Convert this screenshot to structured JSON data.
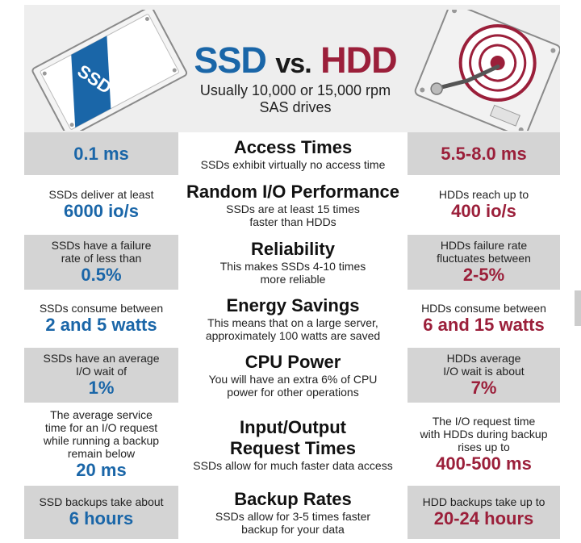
{
  "header": {
    "title_ssd": "SSD",
    "title_vs": "vs.",
    "title_hdd": "HDD",
    "subtitle": [
      "Usually 10,000 or 15,000 rpm",
      "SAS drives"
    ],
    "ssd_label": "SSD"
  },
  "colors": {
    "ssd": "#1a66a8",
    "hdd": "#9b1f3a",
    "shade": "#d4d4d4"
  },
  "rows": [
    {
      "title": [
        "Access Times"
      ],
      "desc": [
        "SSDs exhibit virtually no access time"
      ],
      "left_desc": [],
      "left_value": [
        "0.1 ms"
      ],
      "right_desc": [],
      "right_value": [
        "5.5-8.0 ms"
      ]
    },
    {
      "title": [
        "Random I/O Performance"
      ],
      "desc": [
        "SSDs are at least 15 times",
        "faster than HDDs"
      ],
      "left_desc": [
        "SSDs deliver at least"
      ],
      "left_value": [
        "6000 io/s"
      ],
      "right_desc": [
        "HDDs reach up to"
      ],
      "right_value": [
        "400 io/s"
      ]
    },
    {
      "title": [
        "Reliability"
      ],
      "desc": [
        "This makes SSDs 4-10 times",
        "more reliable"
      ],
      "left_desc": [
        "SSDs have a failure",
        "rate of less than"
      ],
      "left_value": [
        "0.5%"
      ],
      "right_desc": [
        "HDDs failure rate",
        "fluctuates between"
      ],
      "right_value": [
        "2-5%"
      ]
    },
    {
      "title": [
        "Energy Savings"
      ],
      "desc": [
        "This means that on a large server,",
        "approximately 100 watts are saved"
      ],
      "left_desc": [
        "SSDs consume between"
      ],
      "left_value": [
        "2 and 5 watts"
      ],
      "right_desc": [
        "HDDs consume between"
      ],
      "right_value": [
        "6 and 15 watts"
      ]
    },
    {
      "title": [
        "CPU Power"
      ],
      "desc": [
        "You will have an extra 6% of CPU",
        "power for other operations"
      ],
      "left_desc": [
        "SSDs have an average",
        "I/O wait of"
      ],
      "left_value": [
        "1%"
      ],
      "right_desc": [
        "HDDs average",
        "I/O wait is about"
      ],
      "right_value": [
        "7%"
      ]
    },
    {
      "title": [
        "Input/Output",
        "Request Times"
      ],
      "desc": [
        "SSDs allow for much faster data access"
      ],
      "left_desc": [
        "The average service",
        "time for an I/O request",
        "while running a backup",
        "remain below"
      ],
      "left_value": [
        "20 ms"
      ],
      "right_desc": [
        "The I/O request time",
        "with HDDs during backup",
        "rises up to"
      ],
      "right_value": [
        "400-500 ms"
      ]
    },
    {
      "title": [
        "Backup Rates"
      ],
      "desc": [
        "SSDs allow for 3-5 times faster",
        "backup for your data"
      ],
      "left_desc": [
        "SSD backups take about"
      ],
      "left_value": [
        "6 hours"
      ],
      "right_desc": [
        "HDD backups take up to"
      ],
      "right_value": [
        "20-24 hours"
      ]
    }
  ]
}
